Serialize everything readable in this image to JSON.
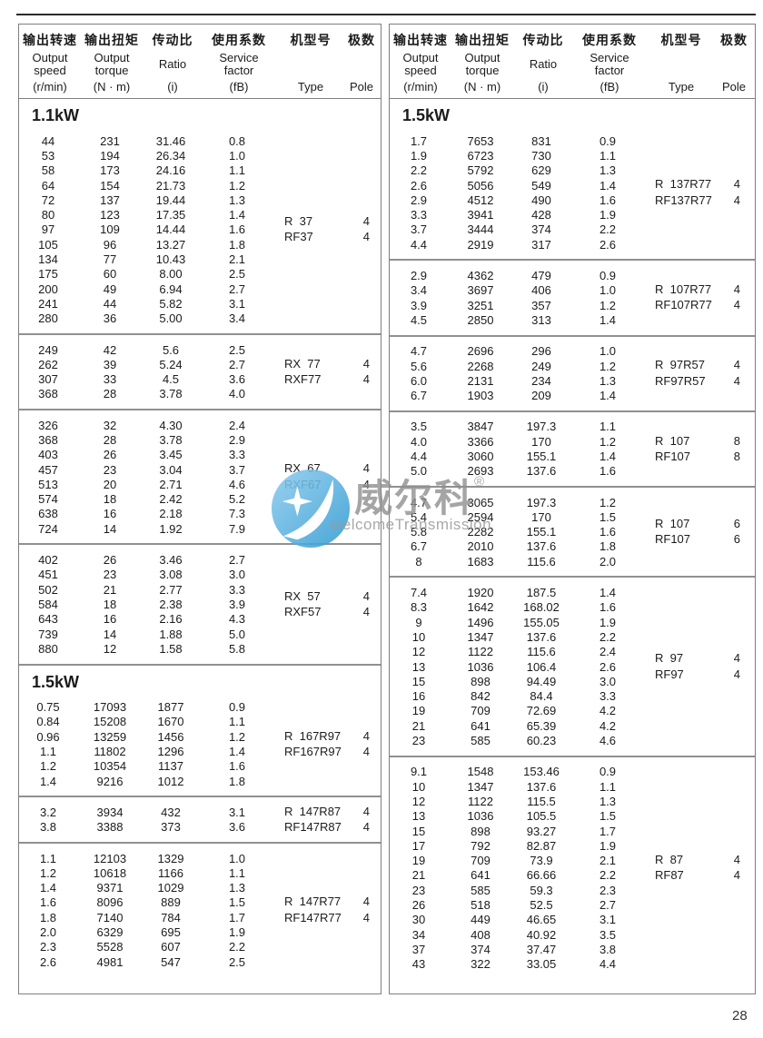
{
  "page_number": "28",
  "header": {
    "columns": [
      {
        "zh": "输出转速",
        "en": [
          "Output",
          "speed"
        ],
        "unit": "(r/min)"
      },
      {
        "zh": "输出扭矩",
        "en": [
          "Output",
          "torque"
        ],
        "unit": "(N · m)"
      },
      {
        "zh": "传动比",
        "en": [
          "Ratio"
        ],
        "unit": "(i)"
      },
      {
        "zh": "使用系数",
        "en": [
          "Service",
          "factor"
        ],
        "unit": "(fB)"
      },
      {
        "zh": "机型号",
        "en": [],
        "unit": "Type"
      },
      {
        "zh": "极数",
        "en": [],
        "unit": "Pole"
      }
    ]
  },
  "watermark": {
    "brand_zh": "威尔科",
    "registered": "®",
    "brand_en": "welcomeTransmission",
    "logo_color_light": "#8ecbee",
    "logo_color_dark": "#2f9ad0"
  },
  "tables": [
    {
      "id": "left",
      "sections": [
        {
          "title": "1.1kW",
          "blocks": [
            {
              "rows": [
                [
                  "44",
                  "231",
                  "31.46",
                  "0.8"
                ],
                [
                  "53",
                  "194",
                  "26.34",
                  "1.0"
                ],
                [
                  "58",
                  "173",
                  "24.16",
                  "1.1"
                ],
                [
                  "64",
                  "154",
                  "21.73",
                  "1.2"
                ],
                [
                  "72",
                  "137",
                  "19.44",
                  "1.3"
                ],
                [
                  "80",
                  "123",
                  "17.35",
                  "1.4"
                ],
                [
                  "97",
                  "109",
                  "14.44",
                  "1.6"
                ],
                [
                  "105",
                  "96",
                  "13.27",
                  "1.8"
                ],
                [
                  "134",
                  "77",
                  "10.43",
                  "2.1"
                ],
                [
                  "175",
                  "60",
                  "8.00",
                  "2.5"
                ],
                [
                  "200",
                  "49",
                  "6.94",
                  "2.7"
                ],
                [
                  "241",
                  "44",
                  "5.82",
                  "3.1"
                ],
                [
                  "280",
                  "36",
                  "5.00",
                  "3.4"
                ]
              ],
              "types": [
                {
                  "label": "R  37",
                  "pole": "4"
                },
                {
                  "label": "RF37",
                  "pole": "4"
                }
              ]
            },
            {
              "rows": [
                [
                  "249",
                  "42",
                  "5.6",
                  "2.5"
                ],
                [
                  "262",
                  "39",
                  "5.24",
                  "2.7"
                ],
                [
                  "307",
                  "33",
                  "4.5",
                  "3.6"
                ],
                [
                  "368",
                  "28",
                  "3.78",
                  "4.0"
                ]
              ],
              "types": [
                {
                  "label": "RX  77",
                  "pole": "4"
                },
                {
                  "label": "RXF77",
                  "pole": "4"
                }
              ]
            },
            {
              "rows": [
                [
                  "326",
                  "32",
                  "4.30",
                  "2.4"
                ],
                [
                  "368",
                  "28",
                  "3.78",
                  "2.9"
                ],
                [
                  "403",
                  "26",
                  "3.45",
                  "3.3"
                ],
                [
                  "457",
                  "23",
                  "3.04",
                  "3.7"
                ],
                [
                  "513",
                  "20",
                  "2.71",
                  "4.6"
                ],
                [
                  "574",
                  "18",
                  "2.42",
                  "5.2"
                ],
                [
                  "638",
                  "16",
                  "2.18",
                  "7.3"
                ],
                [
                  "724",
                  "14",
                  "1.92",
                  "7.9"
                ]
              ],
              "types": [
                {
                  "label": "RX  67",
                  "pole": "4"
                },
                {
                  "label": "RXF67",
                  "pole": "4"
                }
              ]
            },
            {
              "rows": [
                [
                  "402",
                  "26",
                  "3.46",
                  "2.7"
                ],
                [
                  "451",
                  "23",
                  "3.08",
                  "3.0"
                ],
                [
                  "502",
                  "21",
                  "2.77",
                  "3.3"
                ],
                [
                  "584",
                  "18",
                  "2.38",
                  "3.9"
                ],
                [
                  "643",
                  "16",
                  "2.16",
                  "4.3"
                ],
                [
                  "739",
                  "14",
                  "1.88",
                  "5.0"
                ],
                [
                  "880",
                  "12",
                  "1.58",
                  "5.8"
                ]
              ],
              "types": [
                {
                  "label": "RX  57",
                  "pole": "4"
                },
                {
                  "label": "RXF57",
                  "pole": "4"
                }
              ]
            }
          ]
        },
        {
          "title": "1.5kW",
          "blocks": [
            {
              "rows": [
                [
                  "0.75",
                  "17093",
                  "1877",
                  "0.9"
                ],
                [
                  "0.84",
                  "15208",
                  "1670",
                  "1.1"
                ],
                [
                  "0.96",
                  "13259",
                  "1456",
                  "1.2"
                ],
                [
                  "1.1",
                  "11802",
                  "1296",
                  "1.4"
                ],
                [
                  "1.2",
                  "10354",
                  "1137",
                  "1.6"
                ],
                [
                  "1.4",
                  "9216",
                  "1012",
                  "1.8"
                ]
              ],
              "types": [
                {
                  "label": "R  167R97",
                  "pole": "4"
                },
                {
                  "label": "RF167R97",
                  "pole": "4"
                }
              ]
            },
            {
              "rows": [
                [
                  "3.2",
                  "3934",
                  "432",
                  "3.1"
                ],
                [
                  "3.8",
                  "3388",
                  "373",
                  "3.6"
                ]
              ],
              "types": [
                {
                  "label": "R  147R87",
                  "pole": "4"
                },
                {
                  "label": "RF147R87",
                  "pole": "4"
                }
              ]
            },
            {
              "rows": [
                [
                  "1.1",
                  "12103",
                  "1329",
                  "1.0"
                ],
                [
                  "1.2",
                  "10618",
                  "1166",
                  "1.1"
                ],
                [
                  "1.4",
                  "9371",
                  "1029",
                  "1.3"
                ],
                [
                  "1.6",
                  "8096",
                  "889",
                  "1.5"
                ],
                [
                  "1.8",
                  "7140",
                  "784",
                  "1.7"
                ],
                [
                  "2.0",
                  "6329",
                  "695",
                  "1.9"
                ],
                [
                  "2.3",
                  "5528",
                  "607",
                  "2.2"
                ],
                [
                  "2.6",
                  "4981",
                  "547",
                  "2.5"
                ]
              ],
              "types": [
                {
                  "label": "R  147R77",
                  "pole": "4"
                },
                {
                  "label": "RF147R77",
                  "pole": "4"
                }
              ]
            }
          ]
        }
      ]
    },
    {
      "id": "right",
      "sections": [
        {
          "title": "1.5kW",
          "blocks": [
            {
              "rows": [
                [
                  "1.7",
                  "7653",
                  "831",
                  "0.9"
                ],
                [
                  "1.9",
                  "6723",
                  "730",
                  "1.1"
                ],
                [
                  "2.2",
                  "5792",
                  "629",
                  "1.3"
                ],
                [
                  "2.6",
                  "5056",
                  "549",
                  "1.4"
                ],
                [
                  "2.9",
                  "4512",
                  "490",
                  "1.6"
                ],
                [
                  "3.3",
                  "3941",
                  "428",
                  "1.9"
                ],
                [
                  "3.7",
                  "3444",
                  "374",
                  "2.2"
                ],
                [
                  "4.4",
                  "2919",
                  "317",
                  "2.6"
                ]
              ],
              "types": [
                {
                  "label": "R  137R77",
                  "pole": "4"
                },
                {
                  "label": "RF137R77",
                  "pole": "4"
                }
              ]
            },
            {
              "rows": [
                [
                  "2.9",
                  "4362",
                  "479",
                  "0.9"
                ],
                [
                  "3.4",
                  "3697",
                  "406",
                  "1.0"
                ],
                [
                  "3.9",
                  "3251",
                  "357",
                  "1.2"
                ],
                [
                  "4.5",
                  "2850",
                  "313",
                  "1.4"
                ]
              ],
              "types": [
                {
                  "label": "R  107R77",
                  "pole": "4"
                },
                {
                  "label": "RF107R77",
                  "pole": "4"
                }
              ]
            },
            {
              "rows": [
                [
                  "4.7",
                  "2696",
                  "296",
                  "1.0"
                ],
                [
                  "5.6",
                  "2268",
                  "249",
                  "1.2"
                ],
                [
                  "6.0",
                  "2131",
                  "234",
                  "1.3"
                ],
                [
                  "6.7",
                  "1903",
                  "209",
                  "1.4"
                ]
              ],
              "types": [
                {
                  "label": "R  97R57",
                  "pole": "4"
                },
                {
                  "label": "RF97R57",
                  "pole": "4"
                }
              ]
            },
            {
              "rows": [
                [
                  "3.5",
                  "3847",
                  "197.3",
                  "1.1"
                ],
                [
                  "4.0",
                  "3366",
                  "170",
                  "1.2"
                ],
                [
                  "4.4",
                  "3060",
                  "155.1",
                  "1.4"
                ],
                [
                  "5.0",
                  "2693",
                  "137.6",
                  "1.6"
                ]
              ],
              "types": [
                {
                  "label": "R  107",
                  "pole": "8"
                },
                {
                  "label": "RF107",
                  "pole": "8"
                }
              ]
            },
            {
              "rows": [
                [
                  "4.7",
                  "3065",
                  "197.3",
                  "1.2"
                ],
                [
                  "5.4",
                  "2594",
                  "170",
                  "1.5"
                ],
                [
                  "5.8",
                  "2282",
                  "155.1",
                  "1.6"
                ],
                [
                  "6.7",
                  "2010",
                  "137.6",
                  "1.8"
                ],
                [
                  "8",
                  "1683",
                  "115.6",
                  "2.0"
                ]
              ],
              "types": [
                {
                  "label": "R  107",
                  "pole": "6"
                },
                {
                  "label": "RF107",
                  "pole": "6"
                }
              ]
            },
            {
              "rows": [
                [
                  "7.4",
                  "1920",
                  "187.5",
                  "1.4"
                ],
                [
                  "8.3",
                  "1642",
                  "168.02",
                  "1.6"
                ],
                [
                  "9",
                  "1496",
                  "155.05",
                  "1.9"
                ],
                [
                  "10",
                  "1347",
                  "137.6",
                  "2.2"
                ],
                [
                  "12",
                  "1122",
                  "115.6",
                  "2.4"
                ],
                [
                  "13",
                  "1036",
                  "106.4",
                  "2.6"
                ],
                [
                  "15",
                  "898",
                  "94.49",
                  "3.0"
                ],
                [
                  "16",
                  "842",
                  "84.4",
                  "3.3"
                ],
                [
                  "19",
                  "709",
                  "72.69",
                  "4.2"
                ],
                [
                  "21",
                  "641",
                  "65.39",
                  "4.2"
                ],
                [
                  "23",
                  "585",
                  "60.23",
                  "4.6"
                ]
              ],
              "types": [
                {
                  "label": "R  97",
                  "pole": "4"
                },
                {
                  "label": "RF97",
                  "pole": "4"
                }
              ]
            },
            {
              "rows": [
                [
                  "9.1",
                  "1548",
                  "153.46",
                  "0.9"
                ],
                [
                  "10",
                  "1347",
                  "137.6",
                  "1.1"
                ],
                [
                  "12",
                  "1122",
                  "115.5",
                  "1.3"
                ],
                [
                  "13",
                  "1036",
                  "105.5",
                  "1.5"
                ],
                [
                  "15",
                  "898",
                  "93.27",
                  "1.7"
                ],
                [
                  "17",
                  "792",
                  "82.87",
                  "1.9"
                ],
                [
                  "19",
                  "709",
                  "73.9",
                  "2.1"
                ],
                [
                  "21",
                  "641",
                  "66.66",
                  "2.2"
                ],
                [
                  "23",
                  "585",
                  "59.3",
                  "2.3"
                ],
                [
                  "26",
                  "518",
                  "52.5",
                  "2.7"
                ],
                [
                  "30",
                  "449",
                  "46.65",
                  "3.1"
                ],
                [
                  "34",
                  "408",
                  "40.92",
                  "3.5"
                ],
                [
                  "37",
                  "374",
                  "37.47",
                  "3.8"
                ],
                [
                  "43",
                  "322",
                  "33.05",
                  "4.4"
                ]
              ],
              "types": [
                {
                  "label": "R  87",
                  "pole": "4"
                },
                {
                  "label": "RF87",
                  "pole": "4"
                }
              ]
            }
          ]
        }
      ]
    }
  ]
}
